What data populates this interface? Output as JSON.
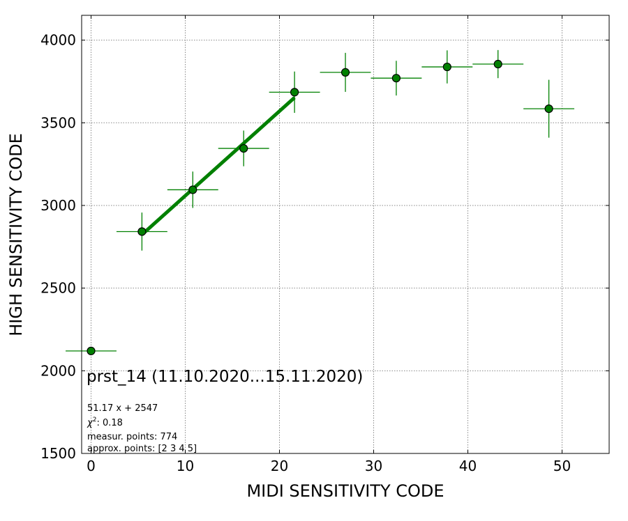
{
  "chart_data": {
    "type": "scatter",
    "title": "",
    "xlabel": "MIDI SENSITIVITY CODE",
    "ylabel": "HIGH SENSITIVITY CODE",
    "xlim": [
      -1,
      55
    ],
    "ylim": [
      1500,
      4150
    ],
    "x_ticks": [
      0,
      10,
      20,
      30,
      40,
      50
    ],
    "y_ticks": [
      1500,
      2000,
      2500,
      3000,
      3500,
      4000
    ],
    "grid": true,
    "colors": {
      "points": "#008000",
      "fit_line": "#008000",
      "point_edge": "#000000"
    },
    "points": [
      {
        "x": 0,
        "y": 2120,
        "xerr": 2.7,
        "yerr": 0
      },
      {
        "x": 5.4,
        "y": 2842,
        "xerr": 2.7,
        "yerr": 115
      },
      {
        "x": 10.8,
        "y": 3095,
        "xerr": 2.7,
        "yerr": 110
      },
      {
        "x": 16.2,
        "y": 3345,
        "xerr": 2.7,
        "yerr": 108
      },
      {
        "x": 21.6,
        "y": 3685,
        "xerr": 2.7,
        "yerr": 125
      },
      {
        "x": 27.0,
        "y": 3805,
        "xerr": 2.7,
        "yerr": 118
      },
      {
        "x": 32.4,
        "y": 3770,
        "xerr": 2.7,
        "yerr": 105
      },
      {
        "x": 37.8,
        "y": 3838,
        "xerr": 2.7,
        "yerr": 100
      },
      {
        "x": 43.2,
        "y": 3855,
        "xerr": 2.7,
        "yerr": 85
      },
      {
        "x": 48.6,
        "y": 3585,
        "xerr": 2.7,
        "yerr": 175
      }
    ],
    "fit": {
      "slope": 51.17,
      "intercept": 2547,
      "x_range": [
        5.4,
        21.6
      ]
    },
    "annotation": {
      "title": "prst_14 (11.10.2020...15.11.2020)",
      "equation": "51.17 x + 2547",
      "chi2_label": "χ",
      "chi2_sup": "2",
      "chi2_value": ": 0.18",
      "measur_points": "measur. points: 774",
      "approx_points": "approx. points: [2 3 4 5]"
    }
  }
}
